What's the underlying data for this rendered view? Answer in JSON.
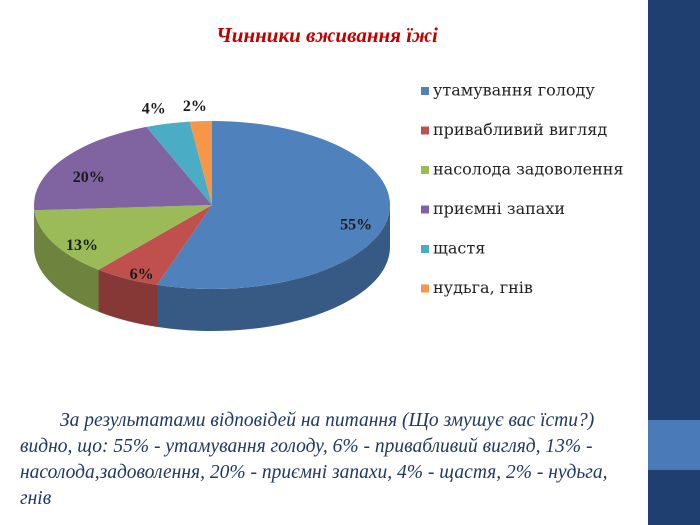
{
  "chart_data": {
    "type": "pie",
    "title": "Чинники вживання їжі",
    "categories": [
      "утамування голоду",
      "привабливий вигляд",
      "насолода задоволення",
      "приємні запахи",
      "щастя",
      "нудьга, гнів"
    ],
    "values": [
      55,
      6,
      13,
      20,
      4,
      2
    ],
    "value_labels": [
      "55%",
      "6%",
      "13%",
      "20%",
      "4%",
      "2%"
    ],
    "colors": [
      "#4f81bd",
      "#c0504d",
      "#9bbb59",
      "#8064a2",
      "#4bacc6",
      "#f79646"
    ]
  },
  "caption": "За результатами відповідей на питання (Що змушує вас їсти?) видно, що: 55% - утамування голоду, 6% - привабливий вигляд, 13% - насолода,задоволення, 20% - приємні запахи, 4% - щастя, 2% - нудьга, гнів"
}
